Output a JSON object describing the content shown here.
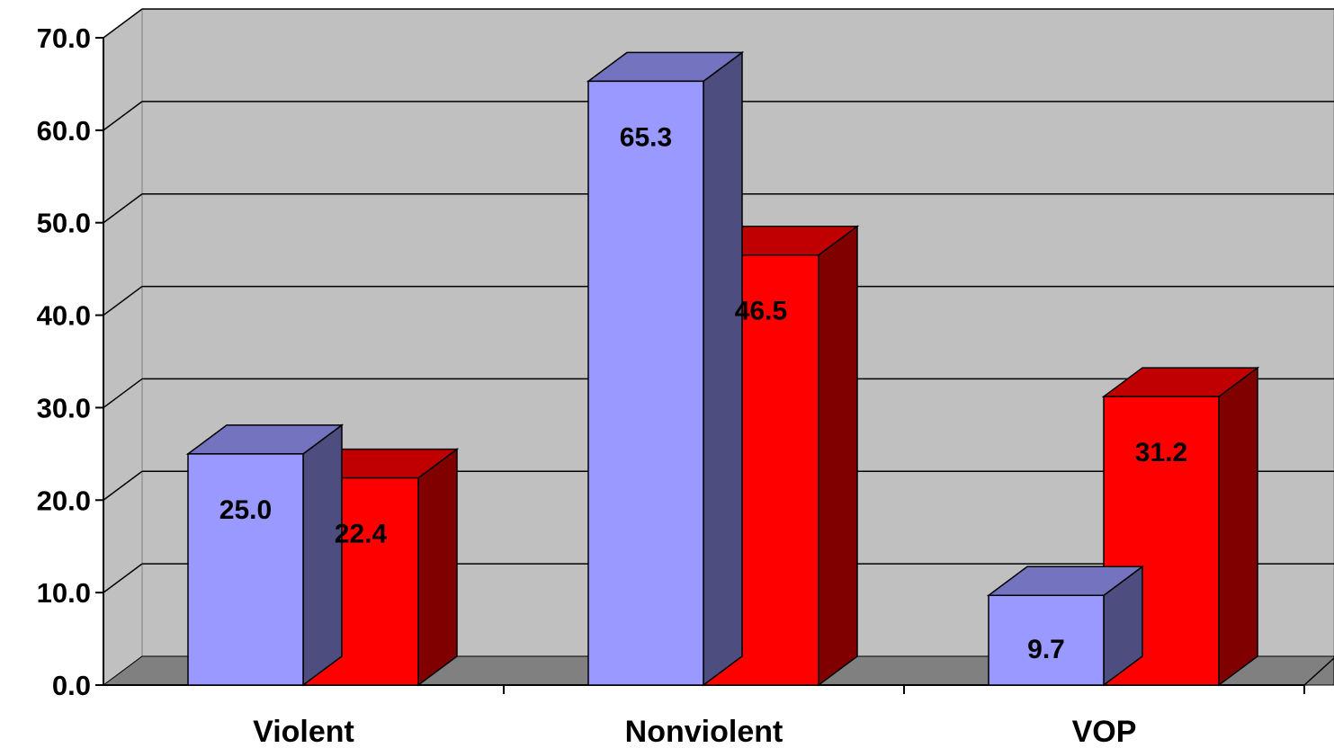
{
  "chart_data": {
    "type": "bar",
    "categories": [
      "Violent",
      "Nonviolent",
      "VOP"
    ],
    "series": [
      {
        "values": [
          25.0,
          65.3,
          9.7
        ]
      },
      {
        "values": [
          22.4,
          46.5,
          31.2
        ]
      }
    ],
    "data_labels": [
      [
        "25.0",
        "65.3",
        "9.7"
      ],
      [
        "22.4",
        "46.5",
        "31.2"
      ]
    ],
    "ylim": [
      0,
      70
    ],
    "yticks": [
      "0.0",
      "10.0",
      "20.0",
      "30.0",
      "40.0",
      "50.0",
      "60.0",
      "70.0"
    ],
    "grid": true,
    "style": "3d-clustered-column"
  },
  "colors": {
    "series_front": [
      "#9999ff",
      "#ff0000"
    ],
    "series_top": [
      "#7373c0",
      "#c00000"
    ],
    "series_side": [
      "#4d4d80",
      "#800000"
    ],
    "back_wall": "#c0c0c0",
    "floor": "#808080",
    "gridline": "#000000"
  }
}
